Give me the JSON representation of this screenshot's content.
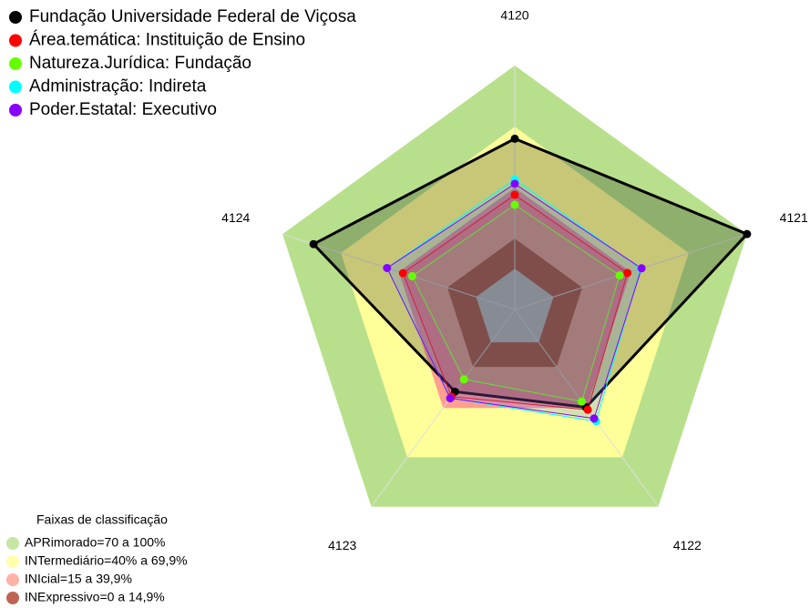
{
  "chart_data": {
    "type": "radar",
    "categories": [
      "4120",
      "4121",
      "4122",
      "4123",
      "4124"
    ],
    "ylim": [
      -20,
      100
    ],
    "inner_color": "#c0c0c0",
    "bands_title": "Faixas de classificação",
    "bands": [
      {
        "label": "APRimorado=70 a 100%",
        "from": 70,
        "to": 100,
        "color": "#b8e08c"
      },
      {
        "label": "INTermediário=40% a 69,9%",
        "from": 40,
        "to": 69.9,
        "color": "#ffff99"
      },
      {
        "label": "INIcial=15 a 39,9%",
        "from": 15,
        "to": 39.9,
        "color": "#ff9f8f"
      },
      {
        "label": "INExpressivo=0 a 14,9%",
        "from": 0,
        "to": 14.9,
        "color": "#b03c28"
      }
    ],
    "series": [
      {
        "name": "Fundação Universidade Federal de Viçosa",
        "color": "#000000",
        "values": [
          64,
          100,
          39.5,
          30,
          84
        ]
      },
      {
        "name": "Área.temática: Instituição de Ensino",
        "color": "#ff0000",
        "values": [
          36.4,
          38.2,
          41,
          33,
          37.8
        ]
      },
      {
        "name": "Natureza.Jurídica: Fundação",
        "color": "#66ff00",
        "values": [
          31.5,
          34.2,
          36,
          22.5,
          33
        ]
      },
      {
        "name": "Administração: Indireta",
        "color": "#00ffff",
        "values": [
          44,
          45,
          48,
          34,
          46
        ]
      },
      {
        "name": "Poder.Estatal: Executivo",
        "color": "#8800ff",
        "values": [
          41.8,
          45.5,
          46.3,
          34,
          46
        ]
      }
    ]
  }
}
